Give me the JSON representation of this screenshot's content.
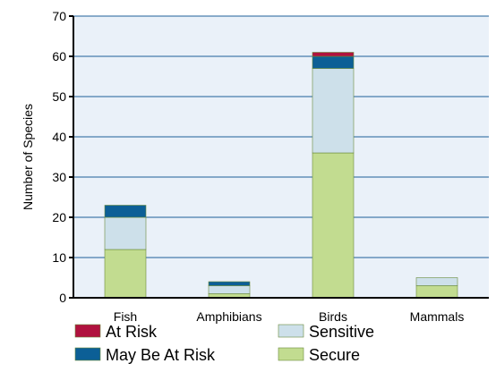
{
  "chart_data": {
    "type": "bar",
    "stacked": true,
    "title": "",
    "xlabel": "",
    "ylabel": "Number of Species",
    "ylim": [
      0,
      70
    ],
    "yticks": [
      0,
      10,
      20,
      30,
      40,
      50,
      60,
      70
    ],
    "grid": true,
    "legend_placement": "bottom",
    "categories": [
      "Fish",
      "Amphibians",
      "Birds",
      "Mammals"
    ],
    "series": [
      {
        "name": "Secure",
        "color": "#c2dc90",
        "values": [
          12,
          1,
          36,
          3
        ]
      },
      {
        "name": "Sensitive",
        "color": "#cde0ea",
        "values": [
          8,
          2,
          21,
          2
        ]
      },
      {
        "name": "May Be At Risk",
        "color": "#0c5f96",
        "values": [
          3,
          1,
          3,
          0
        ]
      },
      {
        "name": "At Risk",
        "color": "#b0123f",
        "values": [
          0,
          0,
          1,
          0
        ]
      }
    ],
    "legend_order": [
      "At Risk",
      "Sensitive",
      "May Be At Risk",
      "Secure"
    ],
    "colors": {
      "plot_background": "#eaf1f9",
      "gridline": "#1f5f99",
      "bar_outline": "#6a8a3a"
    }
  }
}
